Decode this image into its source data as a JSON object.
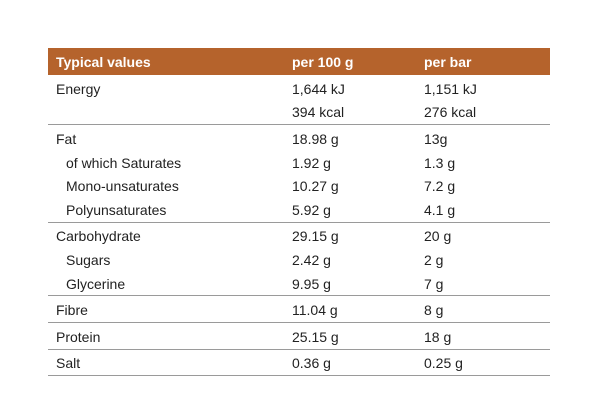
{
  "table": {
    "header": [
      "Typical values",
      "per 100 g",
      "per bar"
    ],
    "rows": [
      [
        "Energy",
        [
          "1,644 kJ",
          "394 kcal"
        ],
        [
          "1,151 kJ",
          "276 kcal"
        ]
      ],
      [
        "Fat",
        "18.98 g",
        "13g"
      ],
      [
        "of which Saturates",
        "1.92 g",
        "1.3 g"
      ],
      [
        "Mono-unsaturates",
        "10.27 g",
        "7.2 g"
      ],
      [
        "Polyunsaturates",
        "5.92 g",
        "4.1 g"
      ],
      [
        "Carbohydrate",
        "29.15 g",
        "20 g"
      ],
      [
        "Sugars",
        "2.42 g",
        "2 g"
      ],
      [
        "Glycerine",
        "9.95 g",
        "7 g"
      ],
      [
        "Fibre",
        "11.04 g",
        "8 g"
      ],
      [
        "Protein",
        "25.15 g",
        "18 g"
      ],
      [
        "Salt",
        "0.36 g",
        "0.25 g"
      ]
    ]
  }
}
